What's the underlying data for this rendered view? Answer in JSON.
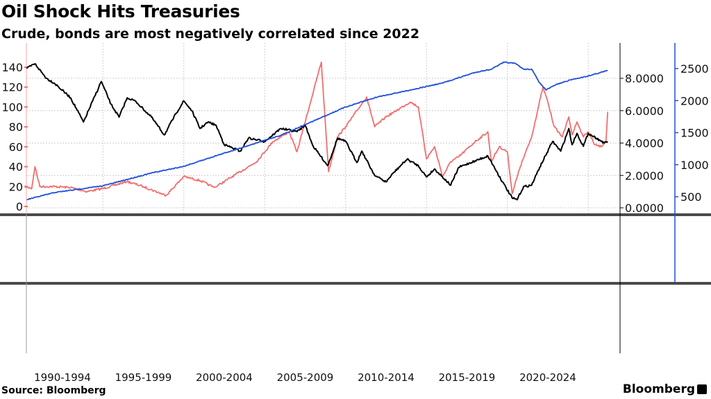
{
  "header": {
    "title": "Oil Shock Hits Treasuries",
    "subtitle": "Crude, bonds are most negatively correlated since 2022"
  },
  "footer": {
    "source": "Source: Bloomberg",
    "logo": "Bloomberg"
  },
  "chart_data": {
    "type": "line",
    "title": "Oil Shock Hits Treasuries",
    "subtitle": "Crude, bonds are most negatively correlated since 2022",
    "x_tick_labels": [
      "1990-1994",
      "1995-1999",
      "2000-2004",
      "2005-2009",
      "2010-2014",
      "2015-2019",
      "2020-2024"
    ],
    "xlim": [
      1990,
      2026.3
    ],
    "axes": {
      "left": {
        "ylim": [
          0,
          145
        ],
        "ticks": [
          0,
          20,
          40,
          60,
          80,
          100,
          120,
          140
        ],
        "color": "#f26d6d"
      },
      "middle": {
        "ylim": [
          0,
          8.4
        ],
        "ticks": [
          "0.0000",
          "2.0000",
          "4.0000",
          "6.0000",
          "8.0000"
        ],
        "color": "#000000"
      },
      "right": {
        "ylim": [
          400,
          2800
        ],
        "ticks": [
          500,
          1000,
          1500,
          2000,
          2500
        ],
        "color": "#1e4fd8"
      }
    },
    "grid": true,
    "series": [
      {
        "axis": "left",
        "color": "#f26d6d",
        "x": [
          1990.2,
          1990.6,
          1990.8,
          1991.1,
          1992,
          1993,
          1994,
          1995,
          1996.5,
          1997.5,
          1998.9,
          2000,
          2001,
          2001.9,
          2003,
          2004.5,
          2005.5,
          2006.5,
          2007,
          2008.5,
          2008.95,
          2009.5,
          2010,
          2011.3,
          2011.8,
          2012.5,
          2013,
          2014,
          2014.5,
          2015,
          2015.5,
          2016,
          2016.5,
          2017,
          2018,
          2018.8,
          2019,
          2019.5,
          2020,
          2020.3,
          2020.8,
          2021.5,
          2022.2,
          2022.5,
          2022.9,
          2023.4,
          2023.8,
          2024,
          2024.3,
          2024.7,
          2025,
          2025.4,
          2025.8,
          2026.1,
          2026.2
        ],
        "y": [
          20,
          18,
          40,
          20,
          20,
          19,
          15,
          18,
          25,
          20,
          11,
          30,
          26,
          19,
          30,
          45,
          65,
          75,
          55,
          145,
          35,
          70,
          80,
          110,
          80,
          90,
          95,
          105,
          100,
          48,
          60,
          30,
          45,
          50,
          65,
          75,
          45,
          60,
          55,
          13,
          40,
          70,
          120,
          105,
          80,
          70,
          90,
          72,
          85,
          70,
          75,
          62,
          60,
          66,
          95
        ]
      },
      {
        "axis": "middle",
        "color": "#000000",
        "x": [
          1990.3,
          1990.8,
          1991.5,
          1992,
          1993,
          1993.8,
          1994.9,
          1995.5,
          1996,
          1996.5,
          1997,
          1998,
          1998.8,
          1999.5,
          2000,
          2000.5,
          2001,
          2001.5,
          2002,
          2002.5,
          2003.5,
          2004,
          2005,
          2006,
          2007,
          2007.5,
          2008,
          2008.9,
          2009.5,
          2010,
          2010.7,
          2011,
          2011.8,
          2012.5,
          2013,
          2013.8,
          2014.5,
          2015,
          2015.5,
          2016.5,
          2017,
          2018,
          2018.8,
          2019.7,
          2020.3,
          2020.6,
          2021,
          2021.5,
          2022,
          2022.8,
          2023.3,
          2023.8,
          2024,
          2024.3,
          2024.7,
          2025,
          2025.5,
          2026,
          2026.2
        ],
        "y": [
          8.6,
          8.9,
          8.0,
          7.7,
          6.8,
          5.3,
          7.8,
          6.4,
          5.6,
          6.8,
          6.6,
          5.6,
          4.5,
          5.8,
          6.6,
          6.0,
          4.9,
          5.3,
          5.1,
          3.9,
          3.5,
          4.3,
          4.1,
          4.9,
          4.7,
          5.1,
          3.8,
          2.6,
          4.3,
          4.1,
          2.8,
          3.5,
          2.0,
          1.6,
          2.2,
          3.0,
          2.6,
          1.9,
          2.4,
          1.4,
          2.5,
          2.9,
          3.2,
          1.6,
          0.6,
          0.5,
          1.3,
          1.4,
          2.5,
          4.1,
          3.5,
          4.9,
          3.9,
          4.6,
          3.8,
          4.6,
          4.3,
          4.0,
          4.1
        ]
      },
      {
        "axis": "right",
        "color": "#1e4fd8",
        "x": [
          1990.3,
          1992,
          1995,
          1998,
          2000,
          2002,
          2004,
          2006,
          2008,
          2009,
          2010,
          2012,
          2014,
          2016,
          2018,
          2019,
          2019.8,
          2020.5,
          2021,
          2021.5,
          2022,
          2022.4,
          2023,
          2024,
          2025,
          2026.2
        ],
        "y": [
          455,
          565,
          670,
          870,
          975,
          1140,
          1300,
          1460,
          1680,
          1790,
          1900,
          2060,
          2165,
          2275,
          2440,
          2490,
          2600,
          2580,
          2490,
          2490,
          2275,
          2165,
          2250,
          2330,
          2385,
          2470
        ]
      }
    ]
  }
}
